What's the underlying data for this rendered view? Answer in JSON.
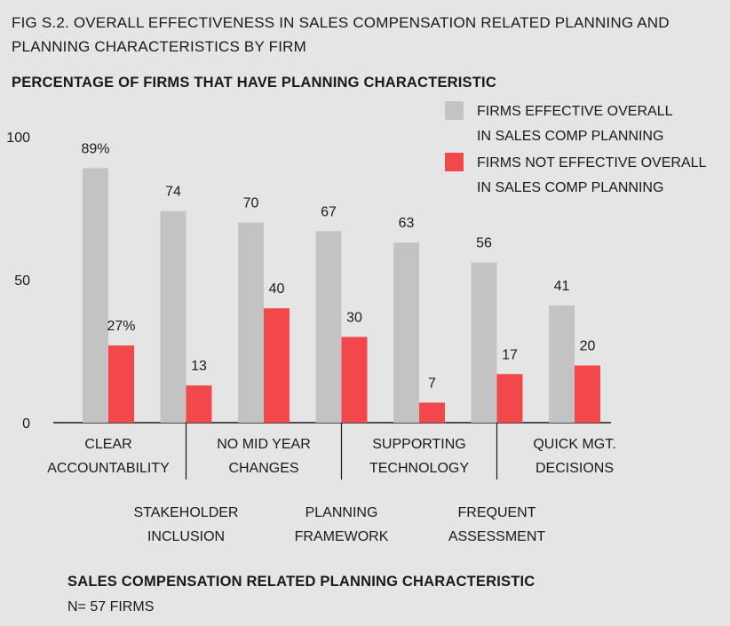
{
  "figure_title": "FIG S.2. OVERALL EFFECTIVENESS IN SALES COMPENSATION RELATED PLANNING AND PLANNING CHARACTERISTICS BY FIRM",
  "footer": {
    "xlabel": "SALES COMPENSATION RELATED PLANNING CHARACTERISTIC",
    "note": "N= 57 FIRMS"
  },
  "colors": {
    "background": "#e5e5e5",
    "effective": "#c3c3c3",
    "not_effective": "#f2474b",
    "axis": "#1a1a1a"
  },
  "chart_data": {
    "type": "bar",
    "ylabel": "PERCENTAGE OF FIRMS THAT HAVE PLANNING CHARACTERISTIC",
    "xlabel": "SALES COMPENSATION RELATED PLANNING CHARACTERISTIC",
    "ylim": [
      0,
      100
    ],
    "yticks": [
      0,
      50,
      100
    ],
    "grid": false,
    "legend_position": "top-right",
    "categories": [
      [
        "CLEAR",
        "ACCOUNTABILITY"
      ],
      [
        "STAKEHOLDER",
        "INCLUSION"
      ],
      [
        "NO MID YEAR",
        "CHANGES"
      ],
      [
        "PLANNING",
        "FRAMEWORK"
      ],
      [
        "SUPPORTING",
        "TECHNOLOGY"
      ],
      [
        "FREQUENT",
        "ASSESSMENT"
      ],
      [
        "QUICK MGT.",
        "DECISIONS"
      ]
    ],
    "series": [
      {
        "name": [
          "FIRMS EFFECTIVE OVERALL",
          "IN SALES COMP PLANNING"
        ],
        "color": "#c3c3c3",
        "values": [
          89,
          74,
          70,
          67,
          63,
          56,
          41
        ],
        "labels": [
          "89%",
          "74",
          "70",
          "67",
          "63",
          "56",
          "41"
        ]
      },
      {
        "name": [
          "FIRMS NOT EFFECTIVE OVERALL",
          "IN SALES COMP PLANNING"
        ],
        "color": "#f2474b",
        "values": [
          27,
          13,
          40,
          30,
          7,
          17,
          20
        ],
        "labels": [
          "27%",
          "13",
          "40",
          "30",
          "7",
          "17",
          "20"
        ]
      }
    ]
  }
}
